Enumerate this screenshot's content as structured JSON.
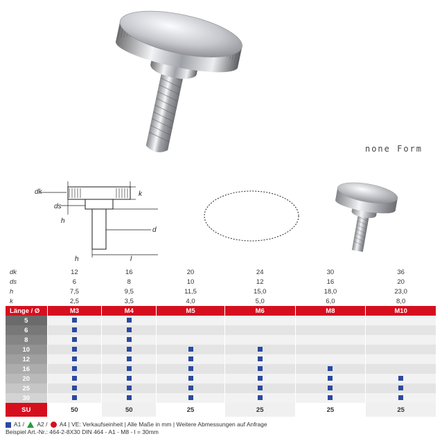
{
  "form_label": "none Form",
  "dim_labels": [
    "dk",
    "ds",
    "h",
    "k"
  ],
  "columns": [
    "M3",
    "M4",
    "M5",
    "M6",
    "M8",
    "M10"
  ],
  "dims": {
    "dk": [
      "12",
      "16",
      "20",
      "24",
      "30",
      "36"
    ],
    "ds": [
      "6",
      "8",
      "10",
      "12",
      "16",
      "20"
    ],
    "h": [
      "7,5",
      "9,5",
      "11,5",
      "15,0",
      "18,0",
      "23,0"
    ],
    "k": [
      "2,5",
      "3,5",
      "4,0",
      "5,0",
      "6,0",
      "8,0"
    ]
  },
  "length_header_label": "Länge / Ø",
  "length_rows": [
    "5",
    "6",
    "8",
    "10",
    "12",
    "16",
    "20",
    "25",
    "30"
  ],
  "label_shades": [
    "#6b6b6b",
    "#787878",
    "#858585",
    "#929292",
    "#9f9f9f",
    "#acacac",
    "#b9b9b9",
    "#c6c6c6",
    "#d3d3d3"
  ],
  "marks": {
    "5": [
      1,
      1,
      0,
      0,
      0,
      0
    ],
    "6": [
      1,
      1,
      0,
      0,
      0,
      0
    ],
    "8": [
      1,
      1,
      0,
      0,
      0,
      0
    ],
    "10": [
      1,
      1,
      1,
      1,
      0,
      0
    ],
    "12": [
      1,
      1,
      1,
      1,
      0,
      0
    ],
    "16": [
      1,
      1,
      1,
      1,
      1,
      0
    ],
    "20": [
      1,
      1,
      1,
      1,
      1,
      1
    ],
    "25": [
      1,
      1,
      1,
      1,
      1,
      1
    ],
    "30": [
      1,
      1,
      1,
      1,
      1,
      1
    ]
  },
  "su_label": "SU",
  "su": [
    "50",
    "50",
    "25",
    "25",
    "25",
    "25"
  ],
  "legend": {
    "a1": "A1",
    "a2": "A2",
    "a4": "A4",
    "ve": "VE: Verkaufseinheit | Alle Maße in mm | Weitere Abmessungen auf Anfrage",
    "example": "Beispiel Art.-Nr.: 464-2-8X30 DIN 464 - A1 - M8 - l = 30mm"
  },
  "colors": {
    "red": "#d60f1e",
    "blue": "#2b4aa0",
    "green": "#2a9c3f",
    "grey_light": "#f2f2f2",
    "grey_alt": "#e4e4e4"
  }
}
